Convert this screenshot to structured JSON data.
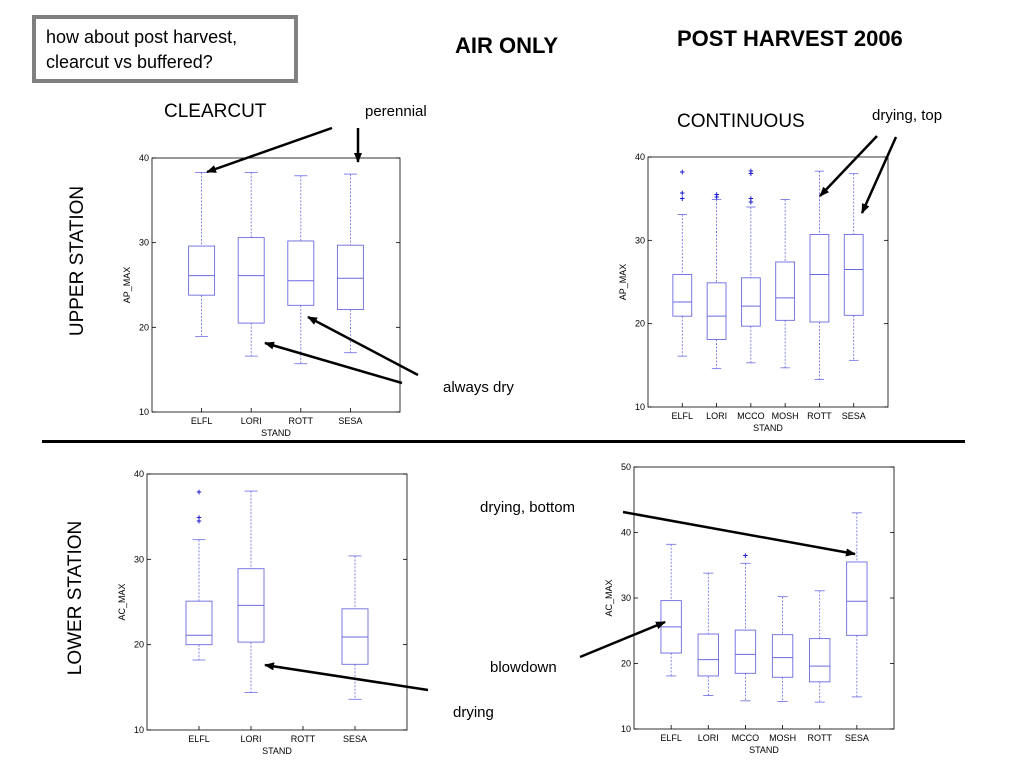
{
  "question": "how about post harvest, clearcut vs buffered?",
  "titles": {
    "air_only": "AIR ONLY",
    "post_harvest": "POST HARVEST 2006"
  },
  "section_labels": {
    "clearcut": "CLEARCUT",
    "continuous": "CONTINUOUS",
    "upper_station": "UPPER STATION",
    "lower_station": "LOWER STATION"
  },
  "annotations": {
    "perennial": "perennial",
    "drying_top": "drying, top",
    "always_dry": "always dry",
    "drying_bottom": "drying, bottom",
    "blowdown": "blowdown",
    "drying": "drying"
  },
  "colors": {
    "box": "#6a6ae0",
    "outlier": "#1a1acc",
    "axis": "#000000",
    "arrow": "#000000",
    "frame": "#808080"
  },
  "chart_data": [
    {
      "type": "box",
      "id": "upper-clearcut",
      "xlabel": "STAND",
      "ylabel": "AP_MAX",
      "ylim": [
        10,
        40
      ],
      "yticks": [
        10,
        20,
        30,
        40
      ],
      "categories": [
        "ELFL",
        "LORI",
        "ROTT",
        "SESA"
      ],
      "series": [
        {
          "category": "ELFL",
          "whisker_low": 18.9,
          "q1": 23.8,
          "median": 26.1,
          "q3": 29.6,
          "whisker_high": 38.3,
          "outliers": []
        },
        {
          "category": "LORI",
          "whisker_low": 16.6,
          "q1": 20.5,
          "median": 26.1,
          "q3": 30.6,
          "whisker_high": 38.3,
          "outliers": []
        },
        {
          "category": "ROTT",
          "whisker_low": 15.7,
          "q1": 22.6,
          "median": 25.5,
          "q3": 30.2,
          "whisker_high": 37.9,
          "outliers": []
        },
        {
          "category": "SESA",
          "whisker_low": 17.0,
          "q1": 22.1,
          "median": 25.8,
          "q3": 29.7,
          "whisker_high": 38.1,
          "outliers": []
        }
      ]
    },
    {
      "type": "box",
      "id": "upper-continuous",
      "xlabel": "STAND",
      "ylabel": "AP_MAX",
      "ylim": [
        10,
        40
      ],
      "yticks": [
        10,
        20,
        30,
        40
      ],
      "categories": [
        "ELFL",
        "LORI",
        "MCCO",
        "MOSH",
        "ROTT",
        "SESA"
      ],
      "series": [
        {
          "category": "ELFL",
          "whisker_low": 16.1,
          "q1": 20.9,
          "median": 22.6,
          "q3": 25.9,
          "whisker_high": 33.1,
          "outliers": [
            35.0,
            35.7,
            38.2
          ]
        },
        {
          "category": "LORI",
          "whisker_low": 14.6,
          "q1": 18.1,
          "median": 20.9,
          "q3": 24.9,
          "whisker_high": 34.9,
          "outliers": [
            35.2,
            35.5
          ]
        },
        {
          "category": "MCCO",
          "whisker_low": 15.3,
          "q1": 19.7,
          "median": 22.1,
          "q3": 25.5,
          "whisker_high": 34.0,
          "outliers": [
            34.6,
            35.0,
            38.0,
            38.3
          ]
        },
        {
          "category": "MOSH",
          "whisker_low": 14.7,
          "q1": 20.4,
          "median": 23.1,
          "q3": 27.4,
          "whisker_high": 34.9,
          "outliers": []
        },
        {
          "category": "ROTT",
          "whisker_low": 13.3,
          "q1": 20.2,
          "median": 25.9,
          "q3": 30.7,
          "whisker_high": 38.3,
          "outliers": []
        },
        {
          "category": "SESA",
          "whisker_low": 15.6,
          "q1": 21.0,
          "median": 26.5,
          "q3": 30.7,
          "whisker_high": 38.0,
          "outliers": []
        }
      ]
    },
    {
      "type": "box",
      "id": "lower-clearcut",
      "xlabel": "STAND",
      "ylabel": "AC_MAX",
      "ylim": [
        10,
        40
      ],
      "yticks": [
        10,
        20,
        30,
        40
      ],
      "categories": [
        "ELFL",
        "LORI",
        "ROTT",
        "SESA"
      ],
      "series": [
        {
          "category": "ELFL",
          "whisker_low": 18.2,
          "q1": 20.0,
          "median": 21.1,
          "q3": 25.1,
          "whisker_high": 32.3,
          "outliers": [
            34.5,
            34.9,
            37.9
          ]
        },
        {
          "category": "LORI",
          "whisker_low": 14.4,
          "q1": 20.3,
          "median": 24.6,
          "q3": 28.9,
          "whisker_high": 38.0,
          "outliers": []
        },
        {
          "category": "ROTT",
          "whisker_low": null,
          "q1": null,
          "median": null,
          "q3": null,
          "whisker_high": null,
          "outliers": []
        },
        {
          "category": "SESA",
          "whisker_low": 13.6,
          "q1": 17.7,
          "median": 20.9,
          "q3": 24.2,
          "whisker_high": 30.4,
          "outliers": []
        }
      ]
    },
    {
      "type": "box",
      "id": "lower-continuous",
      "xlabel": "STAND",
      "ylabel": "AC_MAX",
      "ylim": [
        10,
        50
      ],
      "yticks": [
        10,
        20,
        30,
        40,
        50
      ],
      "categories": [
        "ELFL",
        "LORI",
        "MCCO",
        "MOSH",
        "ROTT",
        "SESA"
      ],
      "series": [
        {
          "category": "ELFL",
          "whisker_low": 18.1,
          "q1": 21.6,
          "median": 25.6,
          "q3": 29.6,
          "whisker_high": 38.2,
          "outliers": []
        },
        {
          "category": "LORI",
          "whisker_low": 15.1,
          "q1": 18.1,
          "median": 20.6,
          "q3": 24.5,
          "whisker_high": 33.8,
          "outliers": []
        },
        {
          "category": "MCCO",
          "whisker_low": 14.3,
          "q1": 18.5,
          "median": 21.4,
          "q3": 25.1,
          "whisker_high": 35.3,
          "outliers": [
            36.5
          ]
        },
        {
          "category": "MOSH",
          "whisker_low": 14.2,
          "q1": 17.9,
          "median": 20.9,
          "q3": 24.4,
          "whisker_high": 30.2,
          "outliers": []
        },
        {
          "category": "ROTT",
          "whisker_low": 14.1,
          "q1": 17.2,
          "median": 19.6,
          "q3": 23.8,
          "whisker_high": 31.1,
          "outliers": []
        },
        {
          "category": "SESA",
          "whisker_low": 14.9,
          "q1": 24.3,
          "median": 29.5,
          "q3": 35.5,
          "whisker_high": 43.0,
          "outliers": []
        }
      ]
    }
  ]
}
